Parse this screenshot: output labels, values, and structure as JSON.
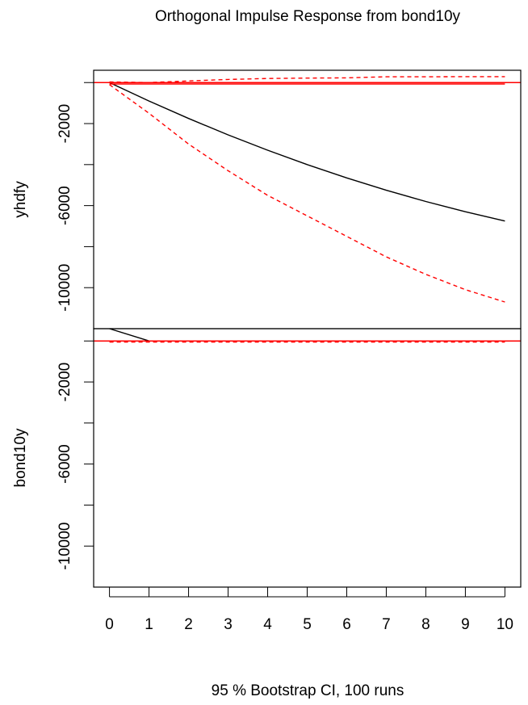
{
  "chart_data": {
    "type": "line",
    "title": "Orthogonal Impulse Response from bond10y",
    "xlabel": "95 % Bootstrap CI,  100 runs",
    "x": [
      0,
      1,
      2,
      3,
      4,
      5,
      6,
      7,
      8,
      9,
      10
    ],
    "xlim": [
      -0.4,
      10.4
    ],
    "x_ticks": [
      "0",
      "1",
      "2",
      "3",
      "4",
      "5",
      "6",
      "7",
      "8",
      "9",
      "10"
    ],
    "ylim": [
      -12000,
      600
    ],
    "y_ticks": [
      -10000,
      -8000,
      -6000,
      -4000,
      -2000,
      0
    ],
    "y_tick_labels": [
      "-10000",
      "",
      "-6000",
      "",
      "-2000",
      ""
    ],
    "grid": false,
    "colors": {
      "response": "#000000",
      "ci": "#ff0000",
      "zero_line": "#ff0000"
    },
    "panels": [
      {
        "ylabel": "yhdfy",
        "series": [
          {
            "role": "response",
            "style": "solid",
            "values": [
              0,
              -900,
              -1750,
              -2550,
              -3300,
              -4000,
              -4650,
              -5250,
              -5800,
              -6300,
              -6750
            ]
          },
          {
            "role": "lower",
            "style": "dashed",
            "values": [
              -100,
              -1500,
              -3000,
              -4300,
              -5500,
              -6500,
              -7500,
              -8500,
              -9350,
              -10100,
              -10700
            ]
          },
          {
            "role": "upper",
            "style": "dashed",
            "values": [
              30,
              0,
              80,
              150,
              200,
              220,
              230,
              280,
              280,
              290,
              290
            ]
          },
          {
            "role": "extra",
            "style": "solid",
            "values": [
              -70,
              -70,
              -70,
              -70,
              -70,
              -70,
              -70,
              -70,
              -70,
              -70,
              -70
            ]
          }
        ]
      },
      {
        "ylabel": "bond10y",
        "series": [
          {
            "role": "response",
            "style": "solid",
            "values": [
              600,
              0,
              0,
              0,
              0,
              0,
              0,
              0,
              0,
              0,
              0
            ]
          },
          {
            "role": "lower",
            "style": "dashed",
            "values": [
              -50,
              -50,
              -50,
              -50,
              -50,
              -50,
              -50,
              -50,
              -50,
              -50,
              -50
            ]
          },
          {
            "role": "upper",
            "style": "dashed",
            "values": [
              -20,
              -20,
              -20,
              -20,
              -20,
              -20,
              -20,
              -20,
              -20,
              -20,
              -20
            ]
          }
        ]
      }
    ]
  }
}
